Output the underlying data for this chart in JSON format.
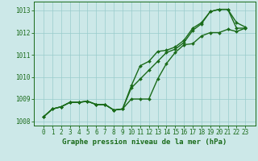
{
  "xlabel": "Graphe pression niveau de la mer (hPa)",
  "background_color": "#cce8e8",
  "plot_bg_color": "#cce8e8",
  "grid_color": "#99cccc",
  "line_color": "#1a6b1a",
  "hours": [
    0,
    1,
    2,
    3,
    4,
    5,
    6,
    7,
    8,
    9,
    10,
    11,
    12,
    13,
    14,
    15,
    16,
    17,
    18,
    19,
    20,
    21,
    22,
    23
  ],
  "seriesA": [
    1008.2,
    1008.55,
    1008.65,
    1008.85,
    1008.85,
    1008.9,
    1008.75,
    1008.75,
    1008.5,
    1008.55,
    1009.0,
    1009.0,
    1009.0,
    1009.9,
    1010.6,
    1011.1,
    1011.45,
    1011.5,
    1011.85,
    1012.0,
    1012.0,
    1012.15,
    1012.05,
    1012.2
  ],
  "seriesB": [
    1008.2,
    1008.55,
    1008.65,
    1008.85,
    1008.85,
    1008.9,
    1008.75,
    1008.75,
    1008.5,
    1008.55,
    1009.6,
    1010.5,
    1010.7,
    1011.15,
    1011.2,
    1011.35,
    1011.65,
    1012.2,
    1012.45,
    1012.95,
    1013.05,
    1013.05,
    1012.45,
    1012.25
  ],
  "seriesC": [
    1008.2,
    1008.55,
    1008.65,
    1008.85,
    1008.85,
    1008.9,
    1008.75,
    1008.75,
    1008.5,
    1008.55,
    1009.5,
    1009.9,
    1010.3,
    1010.7,
    1011.1,
    1011.25,
    1011.55,
    1012.1,
    1012.4,
    1012.95,
    1013.05,
    1013.05,
    1012.2,
    1012.2
  ],
  "ylim": [
    1007.8,
    1013.4
  ],
  "yticks": [
    1008,
    1009,
    1010,
    1011,
    1012,
    1013
  ],
  "xticks": [
    0,
    1,
    2,
    3,
    4,
    5,
    6,
    7,
    8,
    9,
    10,
    11,
    12,
    13,
    14,
    15,
    16,
    17,
    18,
    19,
    20,
    21,
    22,
    23
  ],
  "marker": "D",
  "marker_size": 2.0,
  "line_width": 1.0,
  "tick_fontsize": 5.5,
  "xlabel_fontsize": 6.5
}
